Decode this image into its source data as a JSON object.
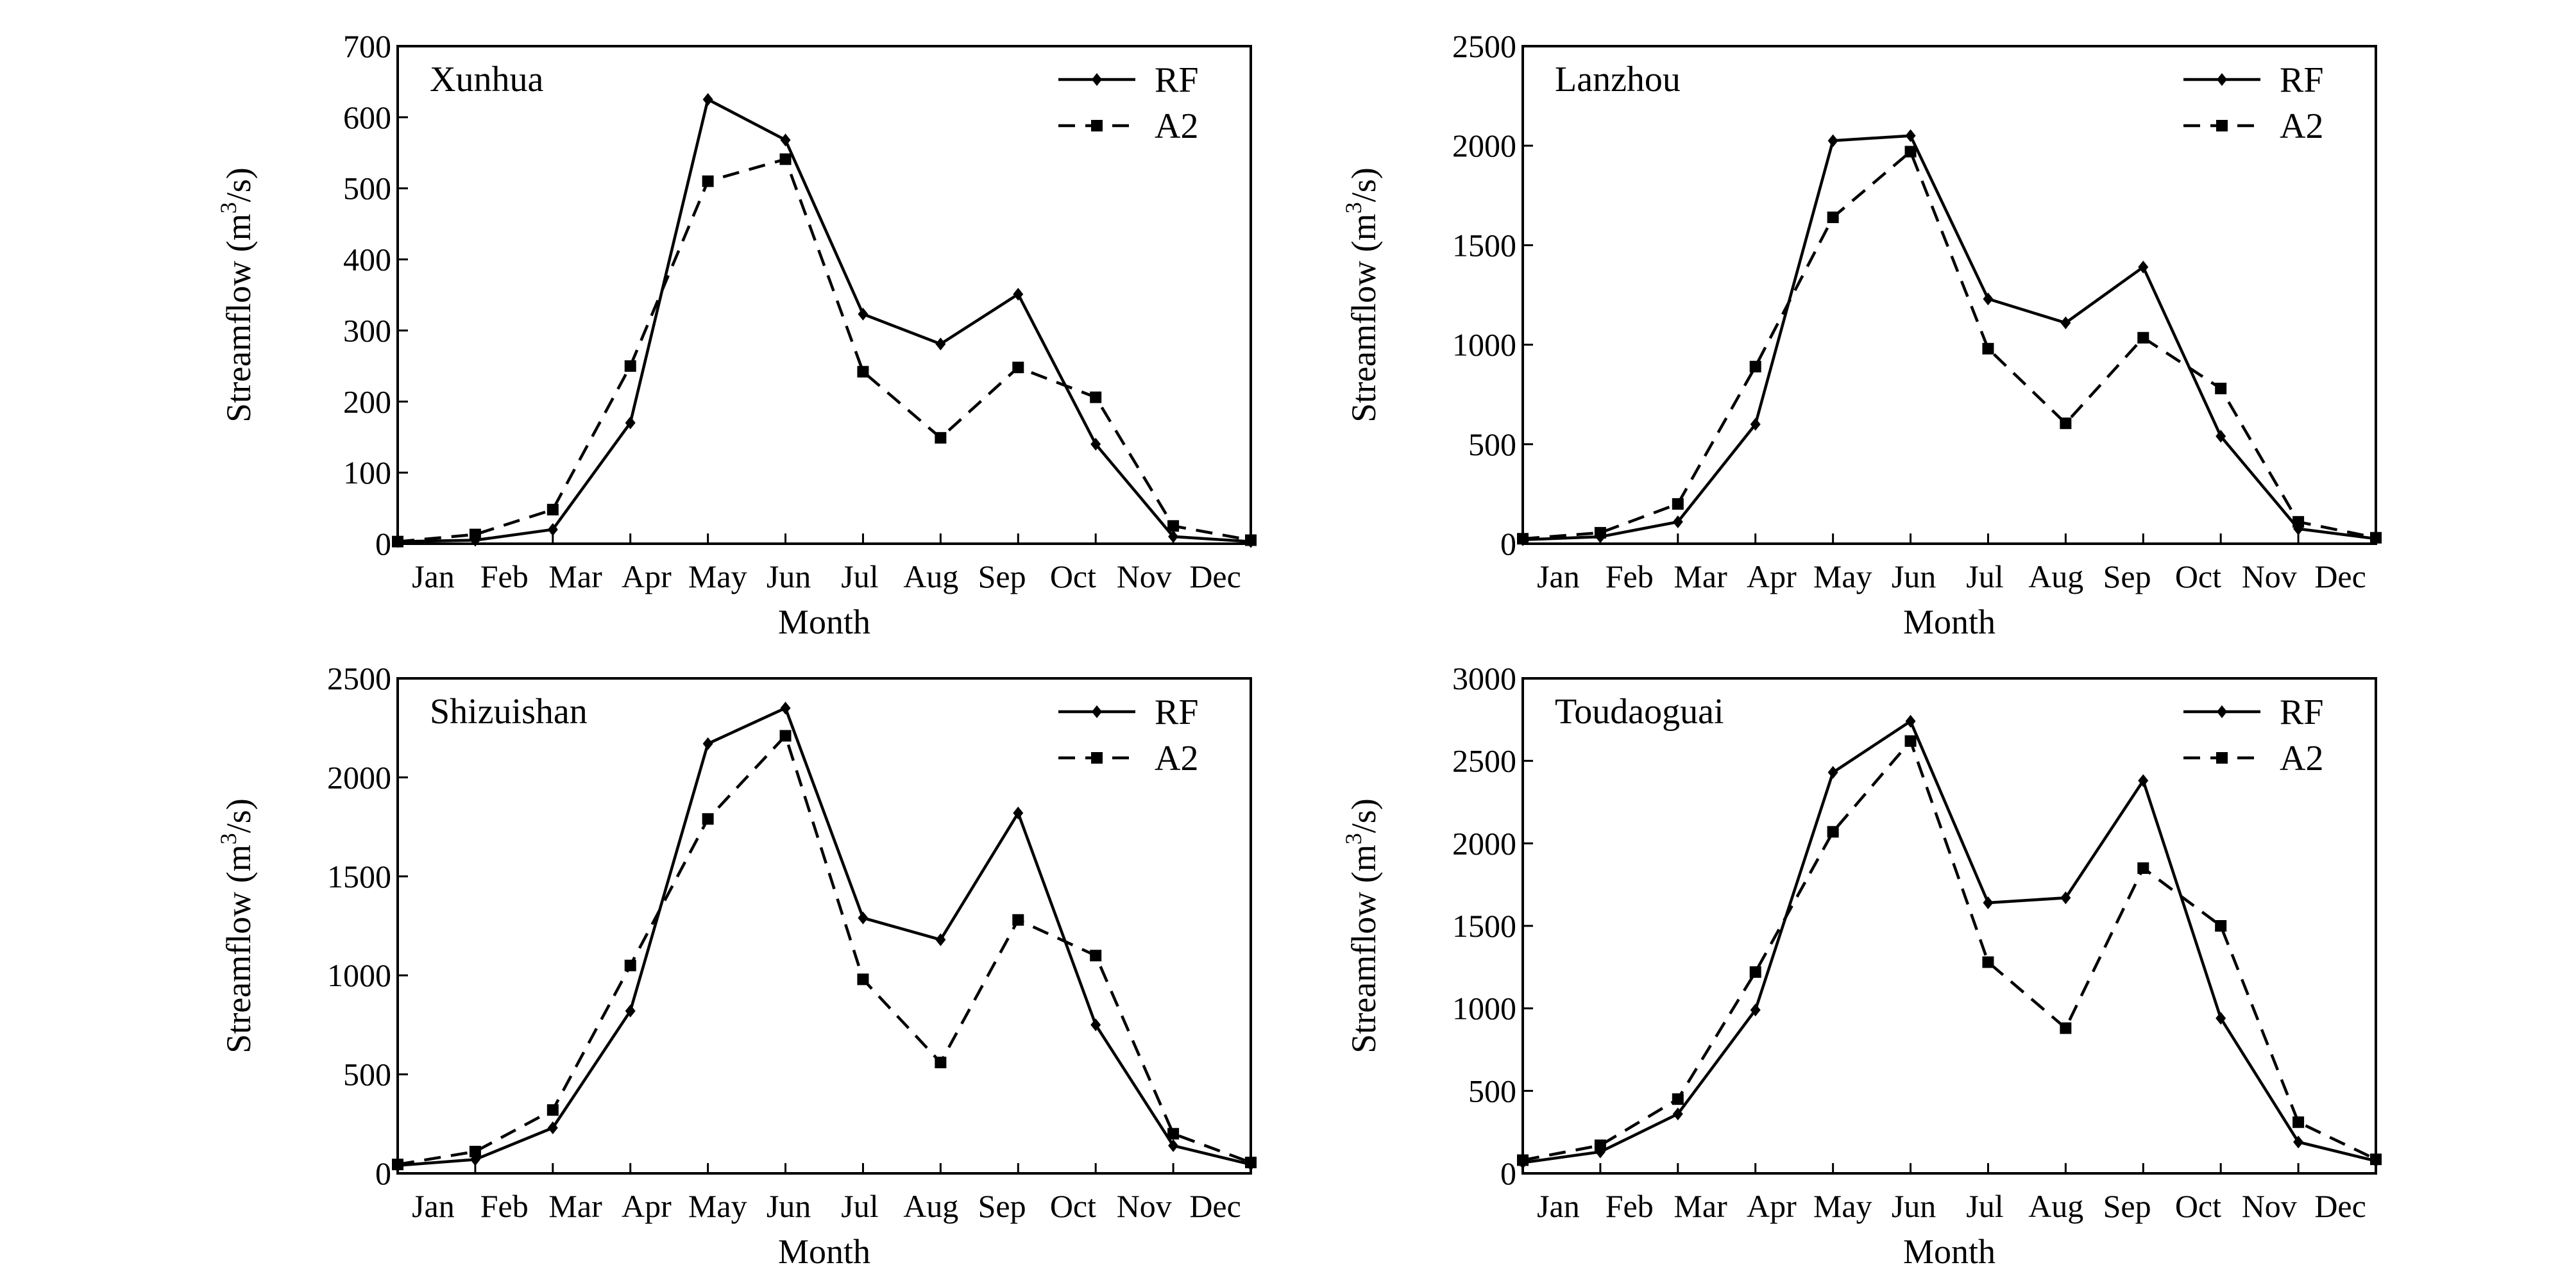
{
  "chart_data": [
    {
      "type": "line",
      "title": "Xunhua",
      "xlabel": "Month",
      "ylabel": "Streamflow (m",
      "ylabel_sup": "3",
      "ylabel_end": "/s)",
      "categories": [
        "Jan",
        "Feb",
        "Mar",
        "Apr",
        "May",
        "Jun",
        "Jul",
        "Aug",
        "Sep",
        "Oct",
        "Nov",
        "Dec"
      ],
      "ylim": [
        0,
        700
      ],
      "yticks": [
        0,
        100,
        200,
        300,
        400,
        500,
        600,
        700
      ],
      "legend_position": "top-right",
      "series": [
        {
          "name": "RF",
          "marker": "diamond",
          "line": "solid",
          "values": [
            3,
            5,
            20,
            170,
            625,
            568,
            323,
            281,
            351,
            140,
            10,
            3
          ]
        },
        {
          "name": "A2",
          "marker": "square",
          "line": "dashed",
          "values": [
            3,
            13,
            48,
            250,
            510,
            541,
            242,
            149,
            248,
            206,
            25,
            5
          ]
        }
      ]
    },
    {
      "type": "line",
      "title": "Lanzhou",
      "xlabel": "Month",
      "ylabel": "Streamflow (m",
      "ylabel_sup": "3",
      "ylabel_end": "/s)",
      "categories": [
        "Jan",
        "Feb",
        "Mar",
        "Apr",
        "May",
        "Jun",
        "Jul",
        "Aug",
        "Sep",
        "Oct",
        "Nov",
        "Dec"
      ],
      "ylim": [
        0,
        2500
      ],
      "yticks": [
        0,
        500,
        1000,
        1500,
        2000,
        2500
      ],
      "legend_position": "top-right",
      "series": [
        {
          "name": "RF",
          "marker": "diamond",
          "line": "solid",
          "values": [
            20,
            35,
            110,
            600,
            2025,
            2050,
            1230,
            1110,
            1390,
            540,
            75,
            25
          ]
        },
        {
          "name": "A2",
          "marker": "square",
          "line": "dashed",
          "values": [
            25,
            55,
            200,
            890,
            1640,
            1970,
            980,
            605,
            1035,
            780,
            110,
            30
          ]
        }
      ]
    },
    {
      "type": "line",
      "title": "Shizuishan",
      "xlabel": "Month",
      "ylabel": "Streamflow (m",
      "ylabel_sup": "3",
      "ylabel_end": "/s)",
      "categories": [
        "Jan",
        "Feb",
        "Mar",
        "Apr",
        "May",
        "Jun",
        "Jul",
        "Aug",
        "Sep",
        "Oct",
        "Nov",
        "Dec"
      ],
      "ylim": [
        0,
        2500
      ],
      "yticks": [
        0,
        500,
        1000,
        1500,
        2000,
        2500
      ],
      "legend_position": "top-right",
      "series": [
        {
          "name": "RF",
          "marker": "diamond",
          "line": "solid",
          "values": [
            40,
            70,
            230,
            820,
            2170,
            2350,
            1290,
            1180,
            1820,
            750,
            140,
            45
          ]
        },
        {
          "name": "A2",
          "marker": "square",
          "line": "dashed",
          "values": [
            45,
            110,
            320,
            1050,
            1790,
            2210,
            980,
            560,
            1280,
            1100,
            200,
            55
          ]
        }
      ]
    },
    {
      "type": "line",
      "title": "Toudaoguai",
      "xlabel": "Month",
      "ylabel": "Streamflow (m",
      "ylabel_sup": "3",
      "ylabel_end": "/s)",
      "categories": [
        "Jan",
        "Feb",
        "Mar",
        "Apr",
        "May",
        "Jun",
        "Jul",
        "Aug",
        "Sep",
        "Oct",
        "Nov",
        "Dec"
      ],
      "ylim": [
        0,
        3000
      ],
      "yticks": [
        0,
        500,
        1000,
        1500,
        2000,
        2500,
        3000
      ],
      "legend_position": "top-right",
      "series": [
        {
          "name": "RF",
          "marker": "diamond",
          "line": "solid",
          "values": [
            65,
            130,
            360,
            990,
            2430,
            2740,
            1640,
            1670,
            2380,
            940,
            190,
            75
          ]
        },
        {
          "name": "A2",
          "marker": "square",
          "line": "dashed",
          "values": [
            80,
            170,
            450,
            1220,
            2070,
            2620,
            1280,
            880,
            1850,
            1500,
            310,
            85
          ]
        }
      ]
    }
  ]
}
